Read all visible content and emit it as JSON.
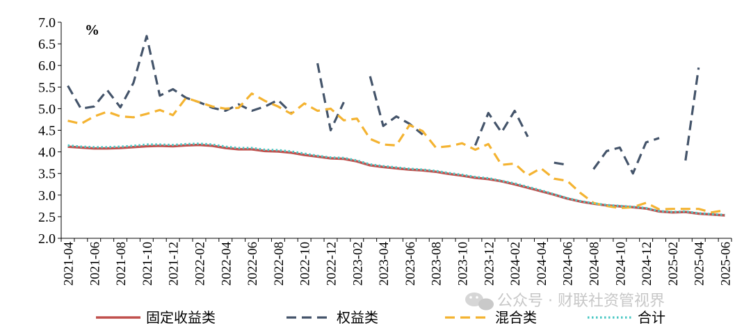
{
  "chart_data": {
    "type": "line",
    "unit": "%",
    "ylim": [
      2.0,
      7.0
    ],
    "ytick_step": 0.5,
    "x": [
      "2021-04",
      "2021-05",
      "2021-06",
      "2021-07",
      "2021-08",
      "2021-09",
      "2021-10",
      "2021-11",
      "2021-12",
      "2022-01",
      "2022-02",
      "2022-03",
      "2022-04",
      "2022-05",
      "2022-06",
      "2022-07",
      "2022-08",
      "2022-09",
      "2022-10",
      "2022-11",
      "2022-12",
      "2023-01",
      "2023-02",
      "2023-03",
      "2023-04",
      "2023-05",
      "2023-06",
      "2023-07",
      "2023-08",
      "2023-09",
      "2023-10",
      "2023-11",
      "2023-12",
      "2024-01",
      "2024-02",
      "2024-03",
      "2024-04",
      "2024-05",
      "2024-06",
      "2024-07",
      "2024-08",
      "2024-09",
      "2024-10",
      "2024-11",
      "2024-12",
      "2025-01",
      "2025-02",
      "2025-03",
      "2025-04",
      "2025-05",
      "2025-06"
    ],
    "x_tick_labels": [
      "2021-04",
      "2021-06",
      "2021-08",
      "2021-10",
      "2021-12",
      "2022-02",
      "2022-04",
      "2022-06",
      "2022-08",
      "2022-10",
      "2022-12",
      "2023-02",
      "2023-04",
      "2023-06",
      "2023-08",
      "2023-10",
      "2023-12",
      "2024-02",
      "2024-04",
      "2024-06",
      "2024-08",
      "2024-10",
      "2024-12",
      "2025-02",
      "2025-04",
      "2025-06"
    ],
    "grid": false,
    "legend_position": "bottom",
    "series": [
      {
        "name": "固定收益类",
        "color": "#c0504d",
        "style": "solid",
        "values": [
          4.12,
          4.1,
          4.08,
          4.08,
          4.09,
          4.11,
          4.13,
          4.14,
          4.13,
          4.15,
          4.16,
          4.14,
          4.09,
          4.06,
          4.06,
          4.02,
          4.01,
          3.98,
          3.93,
          3.89,
          3.85,
          3.84,
          3.78,
          3.69,
          3.65,
          3.62,
          3.59,
          3.57,
          3.54,
          3.49,
          3.45,
          3.4,
          3.37,
          3.32,
          3.25,
          3.17,
          3.09,
          3.01,
          2.92,
          2.85,
          2.8,
          2.76,
          2.74,
          2.72,
          2.69,
          2.62,
          2.6,
          2.61,
          2.57,
          2.55,
          2.53
        ]
      },
      {
        "name": "权益类",
        "color": "#44546a",
        "style": "dashed",
        "values": [
          5.53,
          5.0,
          5.05,
          5.43,
          5.03,
          5.6,
          6.68,
          5.3,
          5.45,
          5.25,
          5.15,
          5.02,
          4.95,
          5.1,
          4.95,
          5.05,
          5.2,
          4.9,
          null,
          6.05,
          4.5,
          5.15,
          null,
          5.75,
          4.6,
          4.82,
          4.65,
          4.4,
          null,
          null,
          null,
          4.15,
          4.9,
          4.45,
          4.95,
          4.35,
          null,
          3.75,
          3.7,
          null,
          3.6,
          4.02,
          4.1,
          3.5,
          4.22,
          4.32,
          null,
          3.8,
          5.95,
          null,
          null
        ]
      },
      {
        "name": "混合类",
        "color": "#f4b331",
        "style": "dashed",
        "values": [
          4.72,
          4.65,
          4.82,
          4.93,
          4.82,
          4.8,
          4.88,
          4.97,
          4.85,
          5.25,
          5.15,
          5.05,
          5.0,
          5.02,
          5.35,
          5.18,
          5.05,
          4.88,
          5.12,
          4.95,
          5.0,
          4.73,
          4.77,
          4.3,
          4.17,
          4.15,
          4.62,
          4.48,
          4.1,
          4.13,
          4.2,
          4.05,
          4.18,
          3.7,
          3.73,
          3.45,
          3.62,
          3.38,
          3.33,
          3.05,
          2.82,
          2.75,
          2.7,
          2.72,
          2.82,
          2.67,
          2.68,
          2.68,
          2.68,
          2.6,
          2.65
        ]
      },
      {
        "name": "合计",
        "color": "#4bc8c4",
        "style": "dotted",
        "values": [
          4.15,
          4.12,
          4.11,
          4.11,
          4.12,
          4.14,
          4.17,
          4.17,
          4.16,
          4.18,
          4.19,
          4.17,
          4.12,
          4.09,
          4.09,
          4.05,
          4.04,
          4.01,
          3.96,
          3.91,
          3.87,
          3.86,
          3.8,
          3.71,
          3.67,
          3.64,
          3.61,
          3.59,
          3.56,
          3.51,
          3.47,
          3.42,
          3.39,
          3.33,
          3.27,
          3.19,
          3.11,
          3.02,
          2.93,
          2.86,
          2.81,
          2.77,
          2.75,
          2.73,
          2.7,
          2.63,
          2.61,
          2.62,
          2.58,
          2.56,
          2.54
        ]
      }
    ]
  },
  "watermark": {
    "text": "公众号 · 财联社资管视界"
  }
}
